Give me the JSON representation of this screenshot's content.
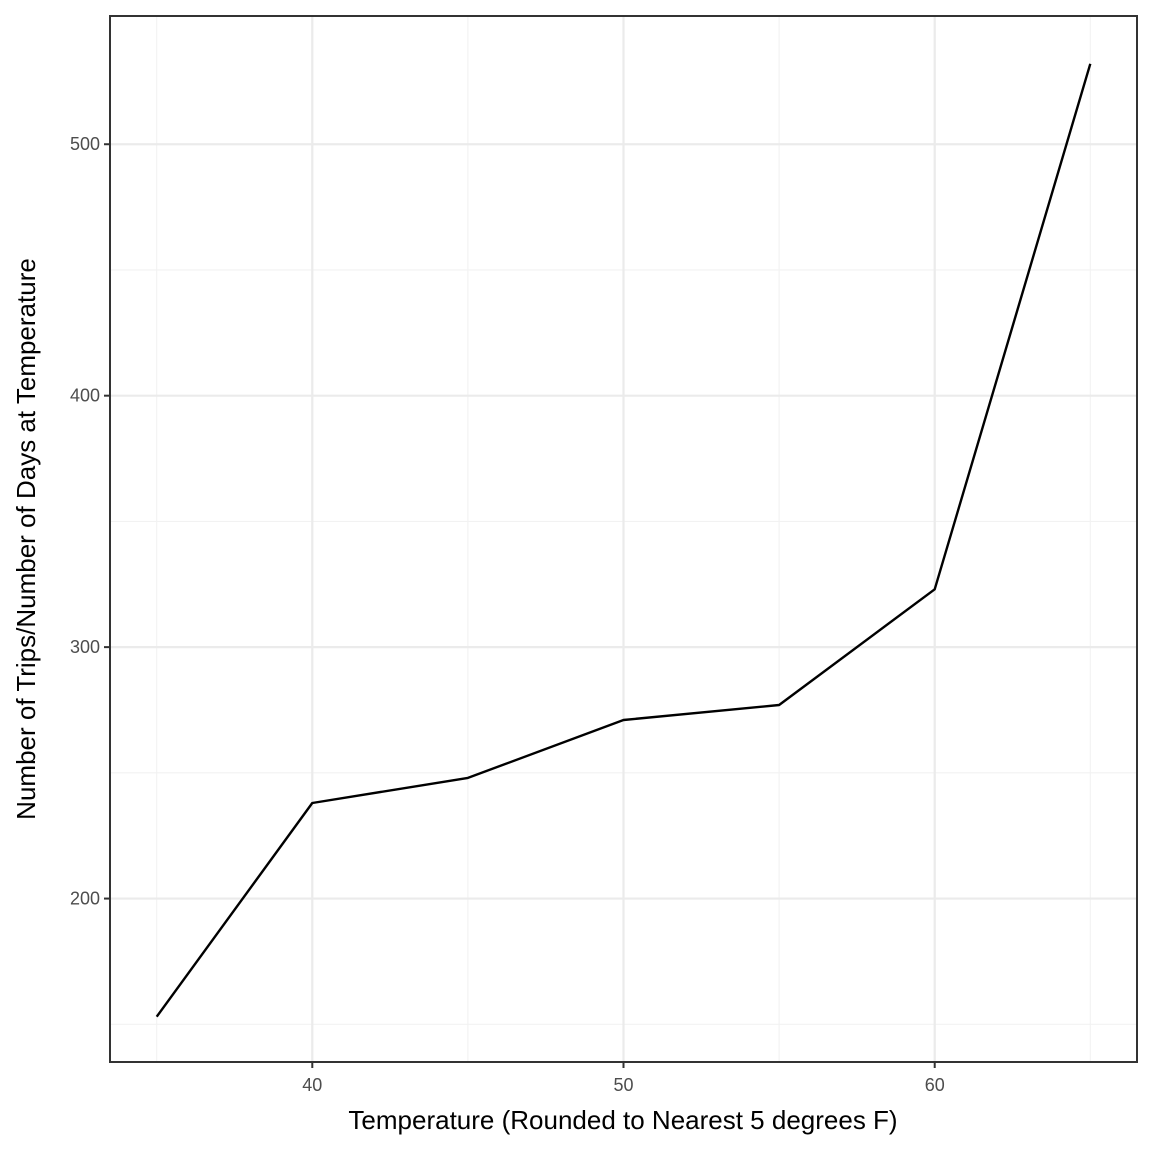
{
  "chart_data": {
    "type": "line",
    "x": [
      35,
      40,
      45,
      50,
      55,
      60,
      65
    ],
    "series": [
      {
        "values": [
          153,
          238,
          248,
          271,
          277,
          323,
          532
        ]
      }
    ],
    "xlabel": "Temperature (Rounded to Nearest 5 degrees F)",
    "ylabel": "Number of Trips/Number of Days at Temperature",
    "xlim": [
      33.5,
      66.5
    ],
    "ylim": [
      135,
      551
    ],
    "x_ticks": [
      40,
      50,
      60
    ],
    "x_minor_ticks": [
      35,
      45,
      55,
      65
    ],
    "y_ticks": [
      200,
      300,
      400,
      500
    ],
    "y_minor_ticks": [
      150,
      250,
      350,
      450
    ],
    "grid": true,
    "legend": "none",
    "line_color": "#000000"
  }
}
